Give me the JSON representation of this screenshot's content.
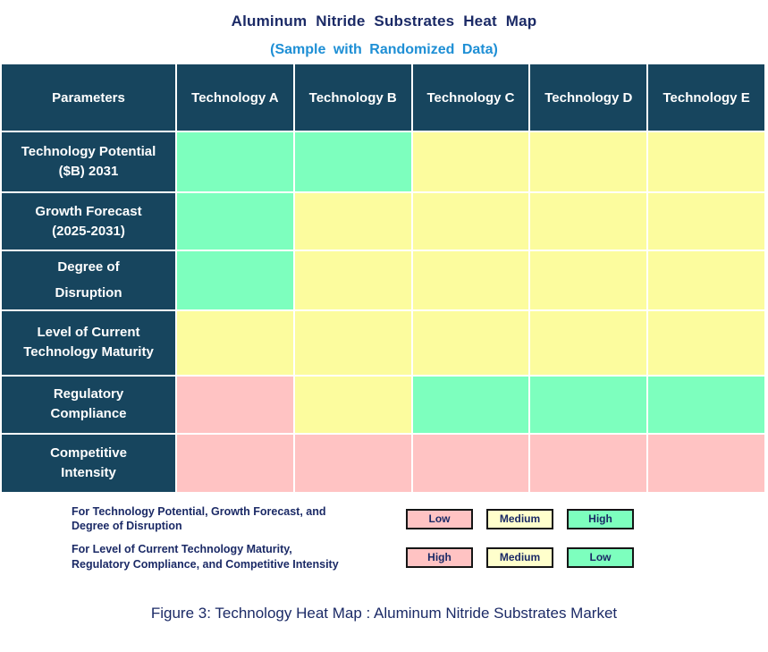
{
  "title": "Aluminum Nitride Substrates Heat Map",
  "subtitle": "(Sample with Randomized Data)",
  "caption": "Figure 3: Technology Heat Map : Aluminum Nitride Substrates Market",
  "colors": {
    "header_bg": "#17455E",
    "title_navy": "#1B2A66",
    "subtitle_blue": "#1E8FD5",
    "green": "#7DFFBE",
    "yellow": "#FCFC9E",
    "pink": "#FFC3C3",
    "legend_yellow": "#FFFFCC",
    "grid_white": "#FFFFFF"
  },
  "table": {
    "header": [
      "Parameters",
      "Technology A",
      "Technology B",
      "Technology C",
      "Technology D",
      "Technology E"
    ],
    "rows": [
      {
        "label": "Technology Potential ($B) 2031",
        "label_lines": [
          "Technology Potential",
          "($B) 2031"
        ],
        "cells": [
          "green",
          "green",
          "yellow",
          "yellow",
          "yellow"
        ]
      },
      {
        "label": "Growth Forecast (2025-2031)",
        "label_lines": [
          "Growth Forecast",
          "(2025-2031)"
        ],
        "cells": [
          "green",
          "yellow",
          "yellow",
          "yellow",
          "yellow"
        ]
      },
      {
        "label": "Degree of Disruption",
        "label_lines": [
          "Degree of",
          "Disruption"
        ],
        "cells": [
          "green",
          "yellow",
          "yellow",
          "yellow",
          "yellow"
        ]
      },
      {
        "label": "Level of Current Technology Maturity",
        "label_lines": [
          "Level of Current",
          "Technology Maturity"
        ],
        "cells": [
          "yellow",
          "yellow",
          "yellow",
          "yellow",
          "yellow"
        ]
      },
      {
        "label": "Regulatory Compliance",
        "label_lines": [
          "Regulatory",
          "Compliance"
        ],
        "cells": [
          "pink",
          "yellow",
          "green",
          "green",
          "green"
        ]
      },
      {
        "label": "Competitive Intensity",
        "label_lines": [
          "Competitive",
          "Intensity"
        ],
        "cells": [
          "pink",
          "pink",
          "pink",
          "pink",
          "pink"
        ]
      }
    ]
  },
  "legend": {
    "groups": [
      {
        "text_lines": [
          "For Technology Potential, Growth Forecast, and",
          "Degree of Disruption"
        ],
        "items": [
          {
            "label": "Low",
            "color": "pink"
          },
          {
            "label": "Medium",
            "color": "legend_yellow"
          },
          {
            "label": "High",
            "color": "green"
          }
        ]
      },
      {
        "text_lines": [
          "For Level of Current Technology Maturity,",
          "Regulatory Compliance, and Competitive Intensity"
        ],
        "items": [
          {
            "label": "High",
            "color": "pink"
          },
          {
            "label": "Medium",
            "color": "legend_yellow"
          },
          {
            "label": "Low",
            "color": "green"
          }
        ]
      }
    ]
  },
  "chart_data": {
    "type": "heatmap",
    "title": "Aluminum Nitride Substrates Heat Map",
    "subtitle": "(Sample with Randomized Data)",
    "columns": [
      "Technology A",
      "Technology B",
      "Technology C",
      "Technology D",
      "Technology E"
    ],
    "rows": [
      "Technology Potential ($B) 2031",
      "Growth Forecast (2025-2031)",
      "Degree of Disruption",
      "Level of Current Technology Maturity",
      "Regulatory Compliance",
      "Competitive Intensity"
    ],
    "values": [
      [
        "High",
        "High",
        "Medium",
        "Medium",
        "Medium"
      ],
      [
        "High",
        "Medium",
        "Medium",
        "Medium",
        "Medium"
      ],
      [
        "High",
        "Medium",
        "Medium",
        "Medium",
        "Medium"
      ],
      [
        "Medium",
        "Medium",
        "Medium",
        "Medium",
        "Medium"
      ],
      [
        "High",
        "Medium",
        "Low",
        "Low",
        "Low"
      ],
      [
        "High",
        "High",
        "High",
        "High",
        "High"
      ]
    ],
    "cell_colors": [
      [
        "green",
        "green",
        "yellow",
        "yellow",
        "yellow"
      ],
      [
        "green",
        "yellow",
        "yellow",
        "yellow",
        "yellow"
      ],
      [
        "green",
        "yellow",
        "yellow",
        "yellow",
        "yellow"
      ],
      [
        "yellow",
        "yellow",
        "yellow",
        "yellow",
        "yellow"
      ],
      [
        "pink",
        "yellow",
        "green",
        "green",
        "green"
      ],
      [
        "pink",
        "pink",
        "pink",
        "pink",
        "pink"
      ]
    ],
    "color_scales": [
      {
        "applies_to": [
          "Technology Potential ($B) 2031",
          "Growth Forecast (2025-2031)",
          "Degree of Disruption"
        ],
        "mapping": {
          "pink": "Low",
          "yellow": "Medium",
          "green": "High"
        }
      },
      {
        "applies_to": [
          "Level of Current Technology Maturity",
          "Regulatory Compliance",
          "Competitive Intensity"
        ],
        "mapping": {
          "pink": "High",
          "yellow": "Medium",
          "green": "Low"
        }
      }
    ],
    "legend_position": "bottom"
  }
}
